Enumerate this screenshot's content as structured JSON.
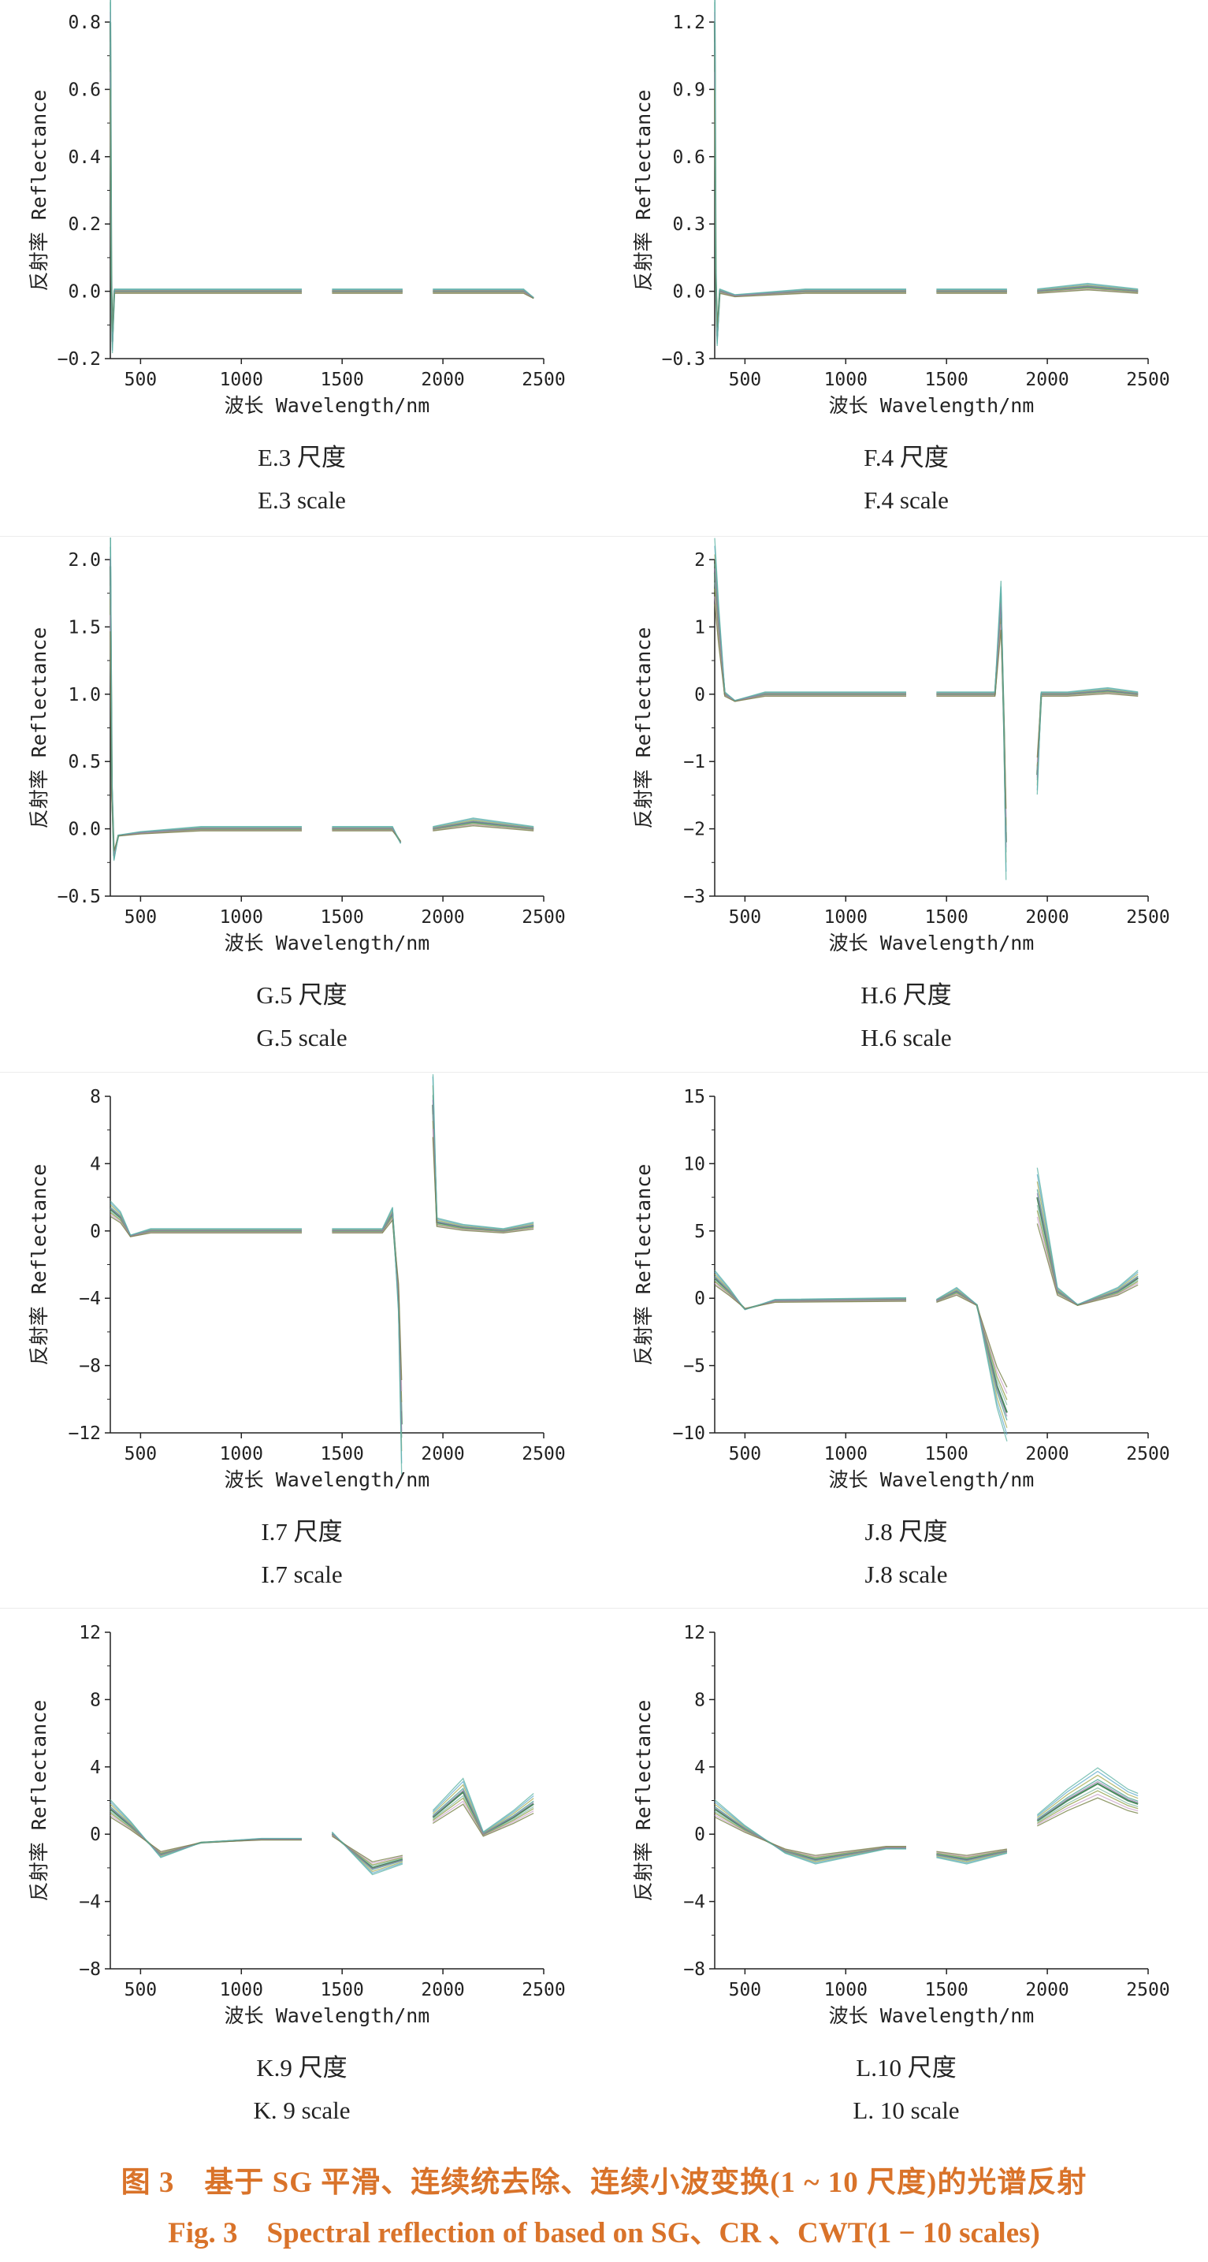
{
  "figure": {
    "title_cn": "图 3　基于 SG 平滑、连续统去除、连续小波变换(1 ~ 10 尺度)的光谱反射",
    "title_en": "Fig. 3　Spectral reflection of based on SG、CR 、CWT(1 − 10 scales)"
  },
  "colors": {
    "series": [
      "#4a8a5e",
      "#3f9e8c",
      "#7fb8a4",
      "#a3a84e",
      "#8a9a3c",
      "#5aa8c8",
      "#c8a0c8",
      "#9a7fb0",
      "#6e7a3a",
      "#58b0a0"
    ],
    "axis": "#222222"
  },
  "chart_data": [
    {
      "type": "line",
      "panel": "E",
      "caption_cn": "E.3 尺度",
      "caption_en": "E.3 scale",
      "xlabel": "波长 Wavelength/nm",
      "ylabel": "反射率 Reflectance",
      "xlim": [
        350,
        2500
      ],
      "ylim": [
        -0.2,
        0.8
      ],
      "xticks": [
        500,
        1000,
        1500,
        2000,
        2500
      ],
      "yticks": [
        -0.2,
        0.0,
        0.2,
        0.4,
        0.6,
        0.8
      ],
      "ytick_labels": [
        "−0.2",
        "0.0",
        "0.2",
        "0.4",
        "0.6",
        "0.8"
      ],
      "gaps": [
        [
          1310,
          1450
        ],
        [
          1800,
          1950
        ]
      ],
      "series": [
        {
          "points": [
            [
              350,
              0.8
            ],
            [
              355,
              0.05
            ],
            [
              360,
              -0.15
            ],
            [
              370,
              0.0
            ],
            [
              400,
              0.0
            ],
            [
              800,
              0.0
            ],
            [
              1300,
              0.0
            ],
            [
              1450,
              0.0
            ],
            [
              1800,
              0.0
            ],
            [
              1950,
              0.0
            ],
            [
              2200,
              0.0
            ],
            [
              2400,
              0.0
            ],
            [
              2450,
              -0.02
            ]
          ]
        }
      ]
    },
    {
      "type": "line",
      "panel": "F",
      "caption_cn": "F.4 尺度",
      "caption_en": "F.4 scale",
      "xlabel": "波长 Wavelength/nm",
      "ylabel": "反射率 Reflectance",
      "xlim": [
        350,
        2500
      ],
      "ylim": [
        -0.3,
        1.2
      ],
      "xticks": [
        500,
        1000,
        1500,
        2000,
        2500
      ],
      "yticks": [
        -0.3,
        0.0,
        0.3,
        0.6,
        0.9,
        1.2
      ],
      "ytick_labels": [
        "−0.3",
        "0.0",
        "0.3",
        "0.6",
        "0.9",
        "1.2"
      ],
      "gaps": [
        [
          1310,
          1450
        ],
        [
          1800,
          1950
        ]
      ],
      "series": [
        {
          "points": [
            [
              350,
              1.2
            ],
            [
              355,
              0.1
            ],
            [
              362,
              -0.2
            ],
            [
              375,
              0.0
            ],
            [
              450,
              -0.02
            ],
            [
              800,
              0.0
            ],
            [
              1300,
              0.0
            ],
            [
              1450,
              0.0
            ],
            [
              1800,
              0.0
            ],
            [
              1950,
              0.0
            ],
            [
              2200,
              0.02
            ],
            [
              2450,
              0.0
            ]
          ]
        }
      ]
    },
    {
      "type": "line",
      "panel": "G",
      "caption_cn": "G.5 尺度",
      "caption_en": "G.5 scale",
      "xlabel": "波长 Wavelength/nm",
      "ylabel": "反射率 Reflectance",
      "xlim": [
        350,
        2500
      ],
      "ylim": [
        -0.5,
        2.0
      ],
      "xticks": [
        500,
        1000,
        1500,
        2000,
        2500
      ],
      "yticks": [
        -0.5,
        0.0,
        0.5,
        1.0,
        1.5,
        2.0
      ],
      "ytick_labels": [
        "−0.5",
        "0.0",
        "0.5",
        "1.0",
        "1.5",
        "2.0"
      ],
      "gaps": [
        [
          1310,
          1450
        ],
        [
          1800,
          1950
        ]
      ],
      "series": [
        {
          "points": [
            [
              350,
              1.95
            ],
            [
              358,
              0.3
            ],
            [
              368,
              -0.2
            ],
            [
              390,
              -0.05
            ],
            [
              500,
              -0.03
            ],
            [
              800,
              0.0
            ],
            [
              1300,
              0.0
            ],
            [
              1450,
              0.0
            ],
            [
              1750,
              0.0
            ],
            [
              1790,
              -0.1
            ],
            [
              1950,
              0.0
            ],
            [
              2150,
              0.05
            ],
            [
              2450,
              0.0
            ]
          ]
        }
      ]
    },
    {
      "type": "line",
      "panel": "H",
      "caption_cn": "H.6 尺度",
      "caption_en": "H.6 scale",
      "xlabel": "波长 Wavelength/nm",
      "ylabel": "反射率 Reflectance",
      "xlim": [
        350,
        2500
      ],
      "ylim": [
        -3,
        2
      ],
      "xticks": [
        500,
        1000,
        1500,
        2000,
        2500
      ],
      "yticks": [
        -3,
        -2,
        -1,
        0,
        1,
        2
      ],
      "ytick_labels": [
        "−3",
        "−2",
        "−1",
        "0",
        "1",
        "2"
      ],
      "gaps": [
        [
          1310,
          1450
        ],
        [
          1800,
          1950
        ]
      ],
      "series": [
        {
          "points": [
            [
              350,
              1.8
            ],
            [
              370,
              1.0
            ],
            [
              400,
              0.0
            ],
            [
              450,
              -0.1
            ],
            [
              600,
              0.0
            ],
            [
              1300,
              0.0
            ],
            [
              1450,
              0.0
            ],
            [
              1740,
              0.0
            ],
            [
              1770,
              1.3
            ],
            [
              1785,
              -0.5
            ],
            [
              1795,
              -2.2
            ],
            [
              1950,
              -1.2
            ],
            [
              1970,
              0.0
            ],
            [
              2100,
              0.0
            ],
            [
              2300,
              0.05
            ],
            [
              2450,
              0.0
            ]
          ]
        }
      ]
    },
    {
      "type": "line",
      "panel": "I",
      "caption_cn": "I.7 尺度",
      "caption_en": "I.7 scale",
      "xlabel": "波长 Wavelength/nm",
      "ylabel": "反射率 Reflectance",
      "xlim": [
        350,
        2500
      ],
      "ylim": [
        -12,
        8
      ],
      "xticks": [
        500,
        1000,
        1500,
        2000,
        2500
      ],
      "yticks": [
        -12,
        -8,
        -4,
        0,
        4,
        8
      ],
      "ytick_labels": [
        "−12",
        "−8",
        "−4",
        "0",
        "4",
        "8"
      ],
      "gaps": [
        [
          1310,
          1450
        ],
        [
          1800,
          1950
        ]
      ],
      "series": [
        {
          "points": [
            [
              350,
              1.3
            ],
            [
              400,
              0.8
            ],
            [
              450,
              -0.3
            ],
            [
              550,
              0.0
            ],
            [
              1300,
              0.0
            ],
            [
              1450,
              0.0
            ],
            [
              1700,
              0.0
            ],
            [
              1750,
              1.0
            ],
            [
              1780,
              -4.0
            ],
            [
              1795,
              -11.5
            ],
            [
              1950,
              7.5
            ],
            [
              1970,
              0.5
            ],
            [
              2100,
              0.2
            ],
            [
              2300,
              0.0
            ],
            [
              2450,
              0.3
            ]
          ]
        }
      ]
    },
    {
      "type": "line",
      "panel": "J",
      "caption_cn": "J.8 尺度",
      "caption_en": "J.8 scale",
      "xlabel": "波长 Wavelength/nm",
      "ylabel": "反射率 Reflectance",
      "xlim": [
        350,
        2500
      ],
      "ylim": [
        -10,
        15
      ],
      "xticks": [
        500,
        1000,
        1500,
        2000,
        2500
      ],
      "yticks": [
        -10,
        -5,
        0,
        5,
        10,
        15
      ],
      "ytick_labels": [
        "−10",
        "−5",
        "0",
        "5",
        "10",
        "15"
      ],
      "gaps": [
        [
          1310,
          1450
        ],
        [
          1800,
          1950
        ]
      ],
      "series": [
        {
          "points": [
            [
              350,
              1.5
            ],
            [
              420,
              0.5
            ],
            [
              500,
              -0.8
            ],
            [
              650,
              -0.2
            ],
            [
              1300,
              -0.1
            ],
            [
              1450,
              -0.2
            ],
            [
              1550,
              0.5
            ],
            [
              1650,
              -0.5
            ],
            [
              1750,
              -6.5
            ],
            [
              1800,
              -8.5
            ],
            [
              1950,
              7.5
            ],
            [
              2050,
              0.5
            ],
            [
              2150,
              -0.5
            ],
            [
              2350,
              0.5
            ],
            [
              2450,
              1.5
            ]
          ]
        }
      ]
    },
    {
      "type": "line",
      "panel": "K",
      "caption_cn": "K.9 尺度",
      "caption_en": "K. 9 scale",
      "xlabel": "波长 Wavelength/nm",
      "ylabel": "反射率 Reflectance",
      "xlim": [
        350,
        2500
      ],
      "ylim": [
        -8,
        12
      ],
      "xticks": [
        500,
        1000,
        1500,
        2000,
        2500
      ],
      "yticks": [
        -8,
        -4,
        0,
        4,
        8,
        12
      ],
      "ytick_labels": [
        "−8",
        "−4",
        "0",
        "4",
        "8",
        "12"
      ],
      "gaps": [
        [
          1310,
          1450
        ],
        [
          1800,
          1950
        ]
      ],
      "series": [
        {
          "points": [
            [
              350,
              1.5
            ],
            [
              450,
              0.5
            ],
            [
              600,
              -1.2
            ],
            [
              800,
              -0.5
            ],
            [
              1100,
              -0.3
            ],
            [
              1300,
              -0.3
            ],
            [
              1450,
              0.0
            ],
            [
              1550,
              -1.0
            ],
            [
              1650,
              -2.0
            ],
            [
              1800,
              -1.5
            ],
            [
              1950,
              1.0
            ],
            [
              2100,
              2.5
            ],
            [
              2200,
              0.0
            ],
            [
              2350,
              1.0
            ],
            [
              2450,
              1.8
            ]
          ]
        }
      ]
    },
    {
      "type": "line",
      "panel": "L",
      "caption_cn": "L.10 尺度",
      "caption_en": "L. 10 scale",
      "xlabel": "波长 Wavelength/nm",
      "ylabel": "反射率 Reflectance",
      "xlim": [
        350,
        2500
      ],
      "ylim": [
        -8,
        12
      ],
      "xticks": [
        500,
        1000,
        1500,
        2000,
        2500
      ],
      "yticks": [
        -8,
        -4,
        0,
        4,
        8,
        12
      ],
      "ytick_labels": [
        "−8",
        "−4",
        "0",
        "4",
        "8",
        "12"
      ],
      "gaps": [
        [
          1310,
          1450
        ],
        [
          1800,
          1950
        ]
      ],
      "series": [
        {
          "points": [
            [
              350,
              1.5
            ],
            [
              500,
              0.3
            ],
            [
              700,
              -1.0
            ],
            [
              850,
              -1.5
            ],
            [
              1000,
              -1.2
            ],
            [
              1200,
              -0.8
            ],
            [
              1300,
              -0.8
            ],
            [
              1450,
              -1.2
            ],
            [
              1600,
              -1.5
            ],
            [
              1800,
              -1.0
            ],
            [
              1950,
              0.8
            ],
            [
              2100,
              2.0
            ],
            [
              2250,
              3.0
            ],
            [
              2400,
              2.0
            ],
            [
              2450,
              1.8
            ]
          ]
        }
      ]
    }
  ]
}
